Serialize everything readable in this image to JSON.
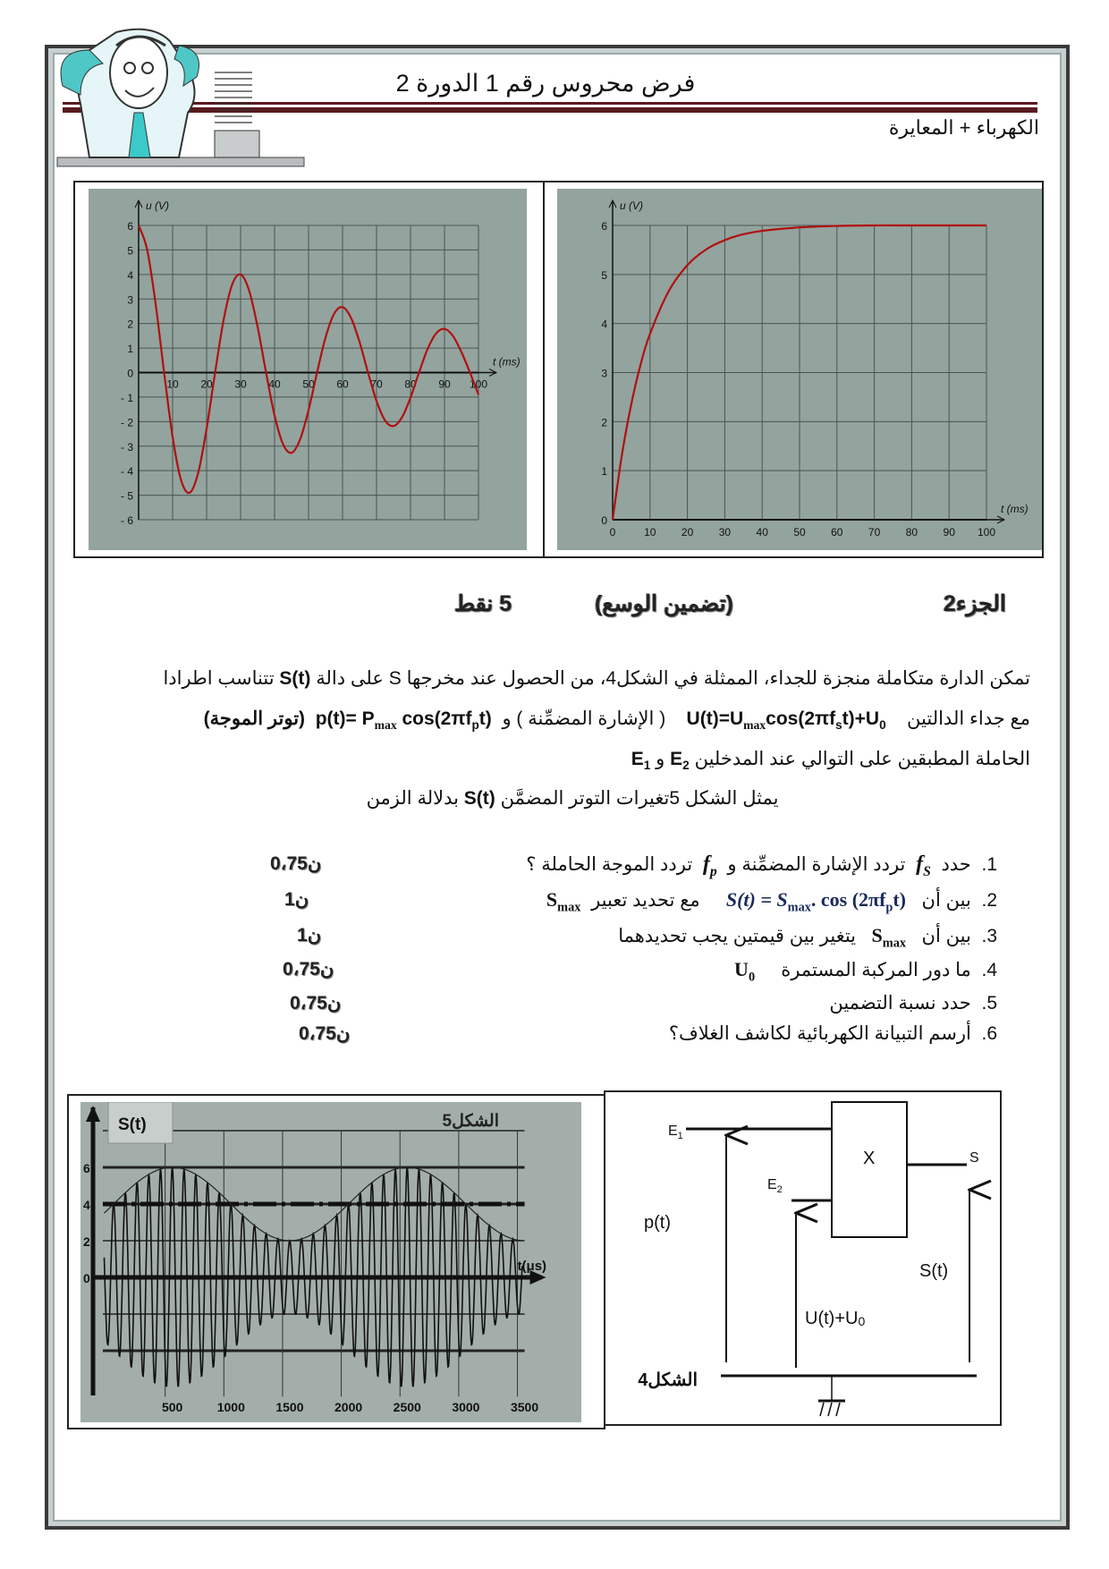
{
  "header": {
    "title": "فرض محروس رقم 1 الدورة 2",
    "subtitle": "الكهرباء + المعايرة",
    "accent_color": "#5a1a1f"
  },
  "section": {
    "part": "الجزء2",
    "topic": "(تضمين الوسع)",
    "points": "5  نقط"
  },
  "intro": {
    "line1": {
      "a": "تمكن الدارة متكاملة منجزة للجداء، الممثلة في الشكل4، من الحصول عند مخرجها S  على دالة",
      "b": "S(t)",
      "c": "تتناسب اطرادا"
    },
    "line2": {
      "a": "مع جداء الدالتين",
      "u": {
        "a": "U(t)=U",
        "a_sub": "max",
        "b": "cos(2πf",
        "b_sub": "s",
        "c": "t)+U",
        "c_sub": "0"
      },
      "b": "( الإشارة المضمِّنة ) و",
      "p": {
        "a": "p(t)= P",
        "a_sub": "max",
        "b": " cos(2πf",
        "b_sub": "p",
        "c": "t)"
      },
      "c": "(توتر الموجة)"
    },
    "line3": {
      "a": "الحاملة المطبقين على التوالي عند المدخلين",
      "e2": "E",
      "e2_sub": "2",
      "and": "و",
      "e1": "E",
      "e1_sub": "1"
    },
    "line4": {
      "a": "يمثل الشكل  5تغيرات التوتر المضمَّن",
      "b": "S(t)",
      "c": "بدلالة الزمن"
    }
  },
  "questions": [
    {
      "number": "1.",
      "a": "حدد",
      "s1": "f",
      "s1_sub": "S",
      "b": "تردد  الإشارة المضمِّنة و",
      "s2": "f",
      "s2_sub": "p",
      "c": "تردد  الموجة الحاملة ؟",
      "points": "0،75ن"
    },
    {
      "number": "2.",
      "a": "بين أن",
      "f_a": "S(t) = S",
      "f_a_sub": "max",
      "f_b": ". cos (2πf",
      "f_b_sub": "p",
      "f_c": "t)",
      "b": "مع تحديد تعبير",
      "s": "S",
      "s_sub": "max",
      "points": "1ن"
    },
    {
      "number": "3.",
      "a": "بين أن",
      "s": "S",
      "s_sub": "max",
      "b": "يتغير بين قيمتين يجب تحديدهما",
      "points": "1ن"
    },
    {
      "number": "4.",
      "a": "ما دور المركبة المستمرة",
      "s": "U",
      "s_sub": "0",
      "points": "0،75ن"
    },
    {
      "number": "5.",
      "a": "حدد نسبة التضمين",
      "points": "0،75ن"
    },
    {
      "number": "6.",
      "a": "أرسم التبيانة الكهربائية لكاشف الغلاف؟",
      "points": "0،75ن"
    }
  ],
  "circuit": {
    "figure_label": "الشكل4",
    "e1": "E",
    "e1_sub": "1",
    "e2": "E",
    "e2_sub": "2",
    "block": "X",
    "output": "S",
    "p_label": "p(t)",
    "u_label": "U(t)+U",
    "u_label_sub": "0",
    "s_label": "S(t)"
  },
  "chart_data": [
    {
      "type": "line",
      "ylabel": "u (V)",
      "xlabel": "t (ms)",
      "xlim": [
        0,
        100
      ],
      "ylim": [
        -6,
        6
      ],
      "xticks": [
        10,
        20,
        30,
        40,
        50,
        60,
        70,
        80,
        90,
        100
      ],
      "yticks": [
        6,
        5,
        4,
        3,
        2,
        1,
        0,
        -1,
        -2,
        -3,
        -4,
        -5,
        -6
      ],
      "grid": true,
      "background": "#93a39e",
      "line_color": "#b01010",
      "x": [
        0,
        2.5,
        5,
        7.5,
        10,
        12.5,
        15,
        17.5,
        20,
        22.5,
        25,
        27.5,
        30,
        32.5,
        35,
        37.5,
        40,
        42.5,
        45,
        47.5,
        50,
        52.5,
        55,
        57.5,
        60,
        62.5,
        65,
        67.5,
        70,
        72.5,
        75,
        77.5,
        80,
        82.5,
        85,
        87.5,
        90,
        92.5,
        95,
        97.5,
        100
      ],
      "y": [
        6,
        5.02,
        2.8,
        0,
        -2.62,
        -4.39,
        -4.9,
        -4.1,
        -2.29,
        0,
        2.14,
        3.58,
        4,
        3.35,
        1.87,
        0,
        -1.75,
        -2.92,
        -3.27,
        -2.73,
        -1.53,
        0,
        1.43,
        2.39,
        2.67,
        2.23,
        1.25,
        0,
        -1.16,
        -1.95,
        -2.18,
        -1.82,
        -1.02,
        0,
        0.95,
        1.59,
        1.78,
        1.49,
        0.83,
        0,
        -0.9
      ]
    },
    {
      "type": "line",
      "ylabel": "u (V)",
      "xlabel": "t (ms)",
      "xlim": [
        0,
        100
      ],
      "ylim": [
        0,
        6
      ],
      "xticks": [
        0,
        10,
        20,
        30,
        40,
        50,
        60,
        70,
        80,
        90,
        100
      ],
      "yticks": [
        0,
        1,
        2,
        3,
        4,
        5,
        6
      ],
      "grid": true,
      "background": "#93a39e",
      "line_color": "#b01010",
      "x": [
        0,
        2.5,
        5,
        7.5,
        10,
        15,
        20,
        25,
        30,
        35,
        40,
        50,
        60,
        70,
        80,
        90,
        100
      ],
      "y": [
        0,
        1.33,
        2.36,
        3.17,
        3.79,
        4.66,
        5.19,
        5.51,
        5.7,
        5.82,
        5.89,
        5.96,
        5.99,
        6,
        6,
        6,
        6
      ]
    },
    {
      "type": "line",
      "title": "الشكل5",
      "ylabel": "S(t)",
      "xlabel": "t(μs)",
      "xticks": [
        500,
        1000,
        1500,
        2000,
        2500,
        3000,
        3500
      ],
      "yticks": [
        0,
        2,
        4,
        6
      ],
      "grid": true,
      "background": "#a3aeab",
      "envelope_max": [
        6,
        2
      ],
      "envelope_peaks_us": [
        500,
        2500
      ],
      "envelope_min_us": [
        1500
      ],
      "dc_level": 4
    }
  ]
}
